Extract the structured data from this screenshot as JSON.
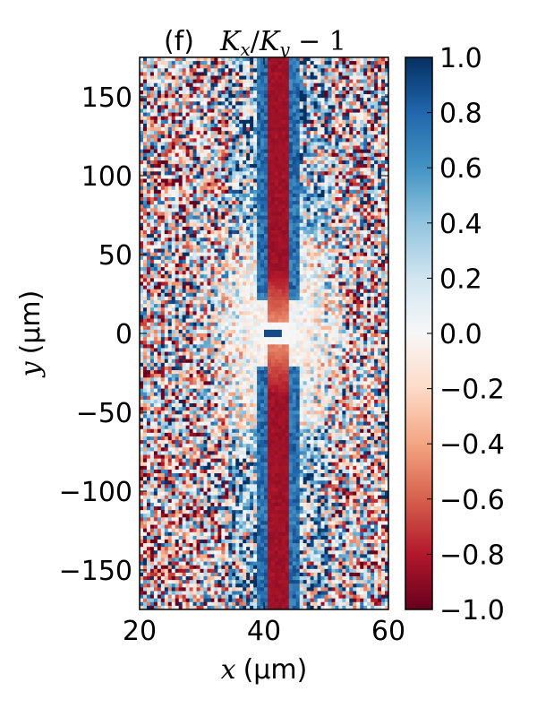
{
  "chart_data": {
    "type": "heatmap",
    "panel_tag": "(f)",
    "title": "K_x/K_y − 1",
    "title_parts": {
      "k1": "K",
      "sub1": "x",
      "slash": "/",
      "k2": "K",
      "sub2": "y",
      "minus_one": " − 1"
    },
    "xlabel": {
      "var": "x",
      "unit": "(μm)"
    },
    "ylabel": {
      "var": "y",
      "unit": "(μm)"
    },
    "xlim": [
      20,
      60
    ],
    "ylim": [
      -175,
      175
    ],
    "xticks": [
      20,
      40,
      60
    ],
    "xtick_labels": [
      "20",
      "40",
      "60"
    ],
    "yticks": [
      -150,
      -100,
      -50,
      0,
      50,
      100,
      150
    ],
    "ytick_labels": [
      "−150",
      "−100",
      "−50",
      "0",
      "50",
      "100",
      "150"
    ],
    "colorbar": {
      "range": [
        -1.0,
        1.0
      ],
      "ticks": [
        -1.0,
        -0.8,
        -0.6,
        -0.4,
        -0.2,
        0.0,
        0.2,
        0.4,
        0.6,
        0.8,
        1.0
      ],
      "tick_labels": [
        "−1.0",
        "−0.8",
        "−0.6",
        "−0.4",
        "−0.2",
        "0.0",
        "0.2",
        "0.4",
        "0.6",
        "0.8",
        "1.0"
      ],
      "colormap": "RdBu",
      "color_low": "#67001f",
      "color_mid": "#f7f7f7",
      "color_high": "#053061"
    },
    "features": {
      "red_stripe_x": [
        40.5,
        44
      ],
      "red_stripe_value": -0.85,
      "blue_edges_value": 0.9,
      "gap_y": [
        -8,
        8
      ]
    }
  }
}
